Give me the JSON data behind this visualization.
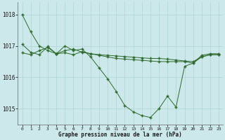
{
  "title": "Graphe pression niveau de la mer (hPa)",
  "background_color": "#cce8ea",
  "grid_color": "#b0d8d8",
  "line_color": "#2d6a2d",
  "marker_color": "#2d6a2d",
  "xlim": [
    -0.5,
    23.5
  ],
  "ylim": [
    1014.5,
    1018.4
  ],
  "yticks": [
    1015,
    1016,
    1017,
    1018
  ],
  "xtick_labels": [
    "0",
    "1",
    "2",
    "3",
    "4",
    "5",
    "6",
    "7",
    "8",
    "9",
    "10",
    "11",
    "12",
    "13",
    "14",
    "15",
    "16",
    "17",
    "18",
    "19",
    "20",
    "21",
    "22",
    "23"
  ],
  "series": [
    [
      1018.0,
      1017.45,
      1017.0,
      1016.85,
      1016.75,
      1016.85,
      1016.9,
      1016.8,
      1016.75,
      1016.7,
      1016.65,
      1016.6,
      1016.58,
      1016.56,
      1016.54,
      1016.52,
      1016.5,
      1016.5,
      1016.5,
      1016.5,
      1016.45,
      1016.7,
      1016.75,
      1016.75
    ],
    [
      1017.05,
      1016.8,
      1016.72,
      1016.98,
      1016.75,
      1017.0,
      1016.85,
      1016.9,
      1016.65,
      1016.3,
      1015.95,
      1015.55,
      1015.1,
      1014.9,
      1014.78,
      1014.72,
      1015.0,
      1015.4,
      1015.05,
      1016.35,
      1016.45,
      1016.65,
      1016.72,
      1016.72
    ],
    [
      1016.78,
      1016.72,
      1016.85,
      1016.95,
      1016.75,
      1016.78,
      1016.72,
      1016.82,
      1016.75,
      1016.72,
      1016.7,
      1016.68,
      1016.66,
      1016.64,
      1016.62,
      1016.6,
      1016.6,
      1016.58,
      1016.55,
      1016.52,
      1016.5,
      1016.65,
      1016.72,
      1016.72
    ]
  ]
}
